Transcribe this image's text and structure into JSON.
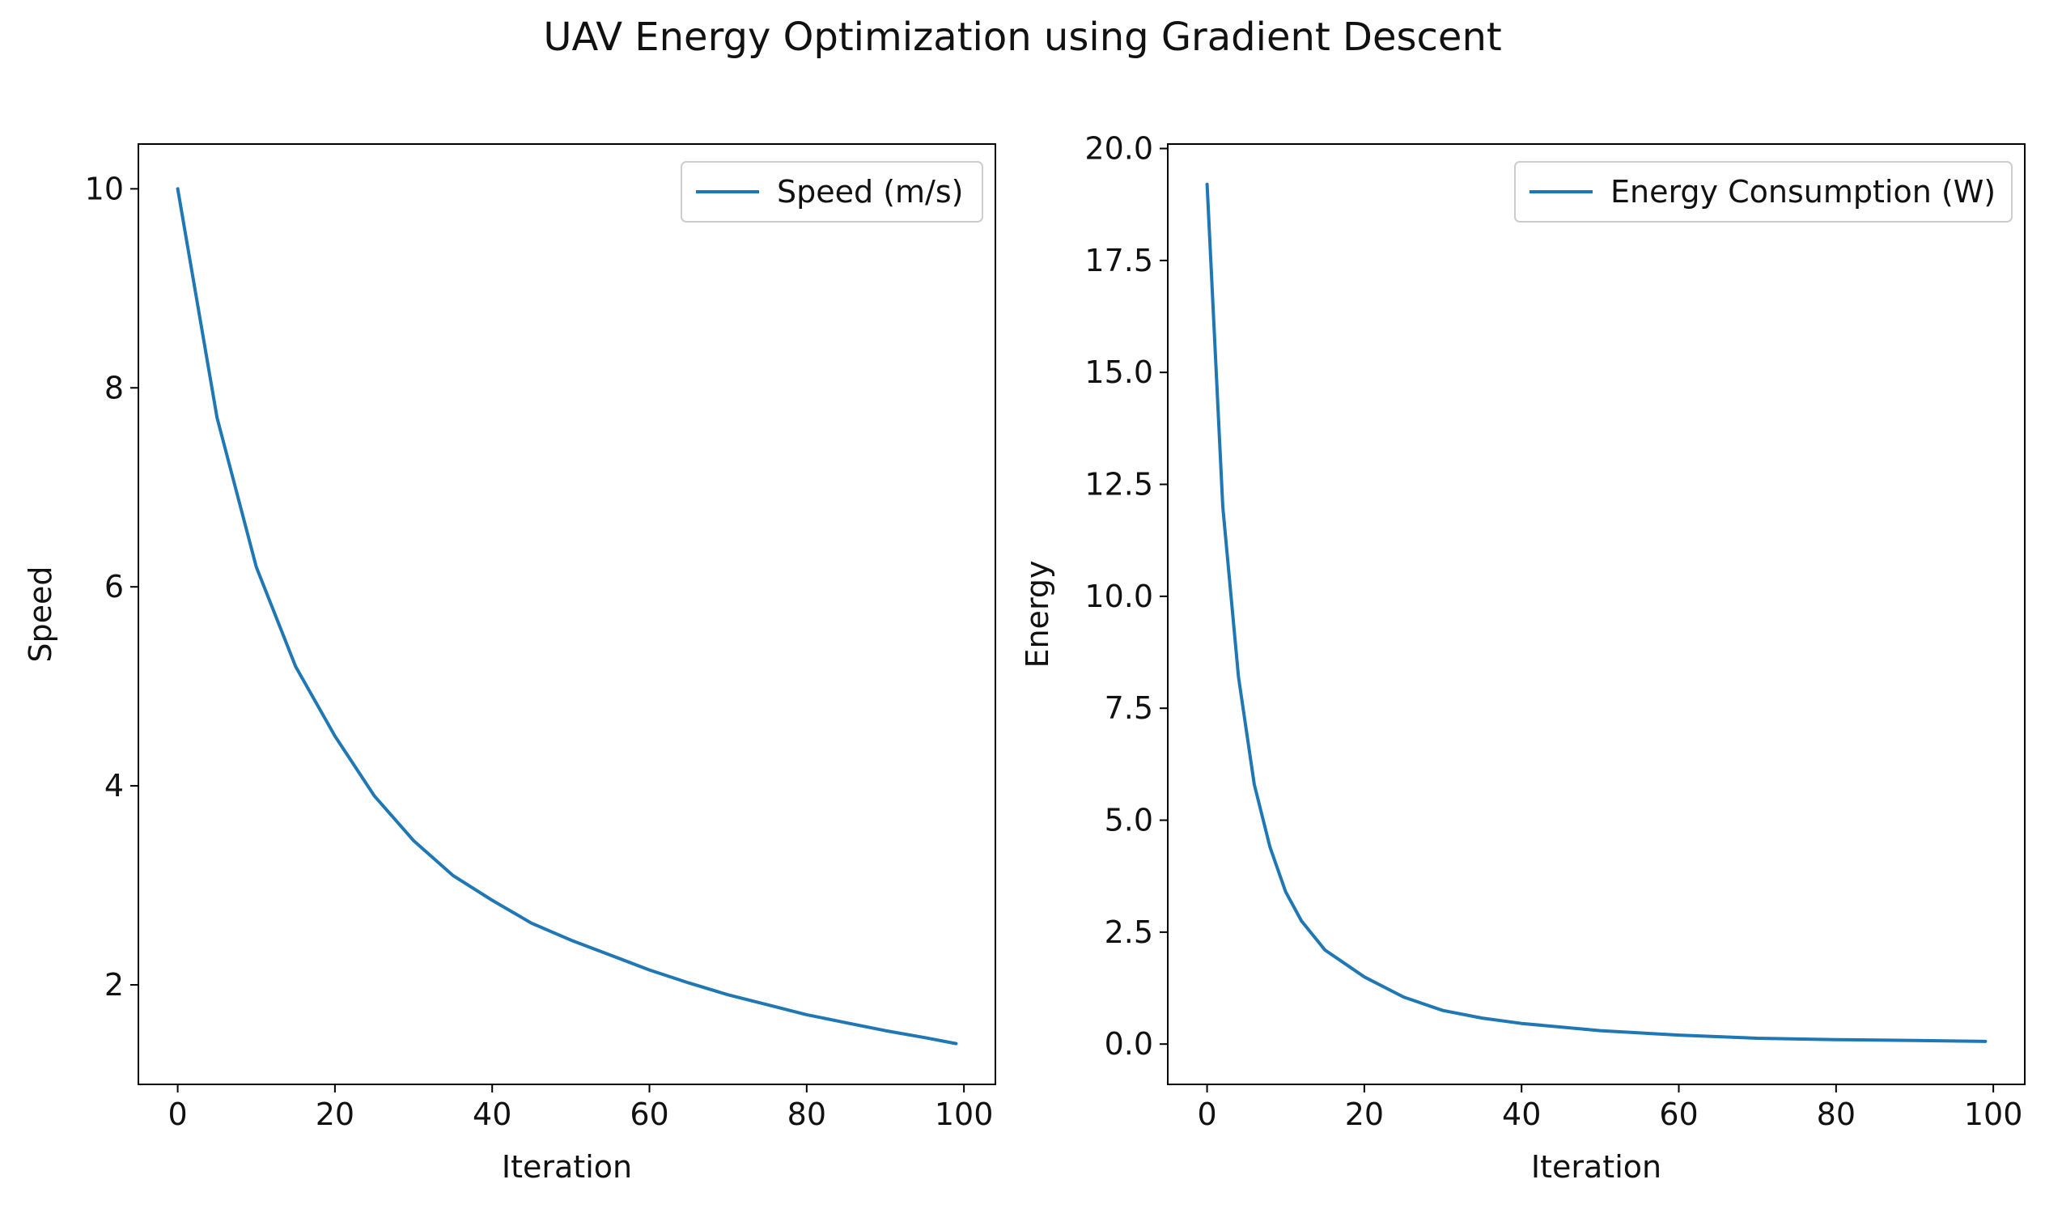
{
  "figure": {
    "title": "UAV Energy Optimization using Gradient Descent"
  },
  "colors": {
    "series": "#1f77b4",
    "axes": "#000000",
    "legend_border": "#cccccc"
  },
  "chart_data": [
    {
      "type": "line",
      "xlabel": "Iteration",
      "ylabel": "Speed",
      "xlim": [
        -5,
        104
      ],
      "ylim": [
        1.0,
        10.45
      ],
      "xticks": [
        0,
        20,
        40,
        60,
        80,
        100
      ],
      "xtick_labels": [
        "0",
        "20",
        "40",
        "60",
        "80",
        "100"
      ],
      "yticks": [
        2,
        4,
        6,
        8,
        10
      ],
      "ytick_labels": [
        "2",
        "4",
        "6",
        "8",
        "10"
      ],
      "legend_position": "upper right",
      "series": [
        {
          "name": "Speed (m/s)",
          "x": [
            0,
            5,
            10,
            15,
            20,
            25,
            30,
            35,
            40,
            45,
            50,
            55,
            60,
            65,
            70,
            75,
            80,
            85,
            90,
            95,
            99
          ],
          "y": [
            10.0,
            7.7,
            6.2,
            5.2,
            4.5,
            3.9,
            3.45,
            3.1,
            2.85,
            2.62,
            2.45,
            2.3,
            2.15,
            2.02,
            1.9,
            1.8,
            1.7,
            1.62,
            1.54,
            1.47,
            1.41
          ]
        }
      ]
    },
    {
      "type": "line",
      "xlabel": "Iteration",
      "ylabel": "Energy",
      "xlim": [
        -5,
        104
      ],
      "ylim": [
        -0.9,
        20.1
      ],
      "xticks": [
        0,
        20,
        40,
        60,
        80,
        100
      ],
      "xtick_labels": [
        "0",
        "20",
        "40",
        "60",
        "80",
        "100"
      ],
      "yticks": [
        0.0,
        2.5,
        5.0,
        7.5,
        10.0,
        12.5,
        15.0,
        17.5,
        20.0
      ],
      "ytick_labels": [
        "0.0",
        "2.5",
        "5.0",
        "7.5",
        "10.0",
        "12.5",
        "15.0",
        "17.5",
        "20.0"
      ],
      "legend_position": "upper right",
      "series": [
        {
          "name": "Energy Consumption (W)",
          "x": [
            0,
            2,
            4,
            6,
            8,
            10,
            12,
            15,
            20,
            25,
            30,
            35,
            40,
            50,
            60,
            70,
            80,
            90,
            99
          ],
          "y": [
            19.2,
            12.0,
            8.2,
            5.8,
            4.4,
            3.4,
            2.75,
            2.1,
            1.5,
            1.05,
            0.75,
            0.58,
            0.46,
            0.3,
            0.2,
            0.13,
            0.1,
            0.08,
            0.06
          ]
        }
      ]
    }
  ]
}
